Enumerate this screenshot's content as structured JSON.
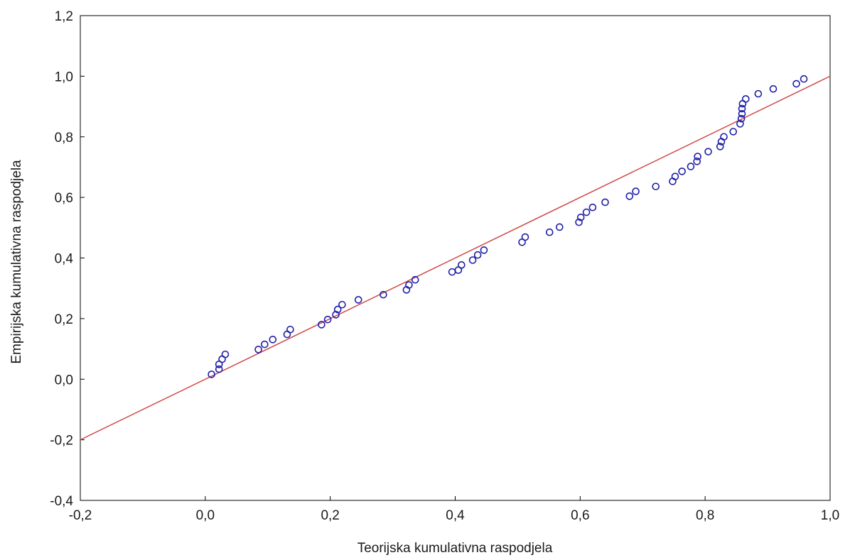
{
  "chart_data": {
    "type": "scatter",
    "title": "",
    "xlabel": "Teorijska kumulativna raspodjela",
    "ylabel": "Empirijska kumulativna raspodjela",
    "xlim": [
      -0.2,
      1.0
    ],
    "ylim": [
      -0.4,
      1.2
    ],
    "x_ticks": [
      "-0,2",
      "0,0",
      "0,2",
      "0,4",
      "0,6",
      "0,8",
      "1,0"
    ],
    "x_tick_values": [
      -0.2,
      0.0,
      0.2,
      0.4,
      0.6,
      0.8,
      1.0
    ],
    "y_ticks": [
      "-0,4",
      "-0,2",
      "0,0",
      "0,2",
      "0,4",
      "0,6",
      "0,8",
      "1,0",
      "1,2"
    ],
    "y_tick_values": [
      -0.4,
      -0.2,
      0.0,
      0.2,
      0.4,
      0.6,
      0.8,
      1.0,
      1.2
    ],
    "grid": false,
    "legend": "none",
    "colors": {
      "points": "#1f1fa8",
      "reference_line": "#d04848",
      "frame": "#000000"
    },
    "reference_line": {
      "x": [
        -0.2,
        1.0
      ],
      "y": [
        -0.2,
        1.0
      ]
    },
    "points": [
      [
        0.01,
        0.016
      ],
      [
        0.022,
        0.033
      ],
      [
        0.022,
        0.049
      ],
      [
        0.027,
        0.066
      ],
      [
        0.032,
        0.082
      ],
      [
        0.085,
        0.098
      ],
      [
        0.095,
        0.115
      ],
      [
        0.108,
        0.131
      ],
      [
        0.131,
        0.148
      ],
      [
        0.136,
        0.164
      ],
      [
        0.186,
        0.18
      ],
      [
        0.196,
        0.197
      ],
      [
        0.209,
        0.213
      ],
      [
        0.212,
        0.23
      ],
      [
        0.219,
        0.246
      ],
      [
        0.245,
        0.262
      ],
      [
        0.285,
        0.279
      ],
      [
        0.322,
        0.295
      ],
      [
        0.326,
        0.311
      ],
      [
        0.336,
        0.328
      ],
      [
        0.395,
        0.354
      ],
      [
        0.405,
        0.36
      ],
      [
        0.41,
        0.377
      ],
      [
        0.428,
        0.393
      ],
      [
        0.436,
        0.41
      ],
      [
        0.446,
        0.426
      ],
      [
        0.507,
        0.452
      ],
      [
        0.512,
        0.469
      ],
      [
        0.551,
        0.485
      ],
      [
        0.567,
        0.502
      ],
      [
        0.598,
        0.518
      ],
      [
        0.601,
        0.534
      ],
      [
        0.61,
        0.551
      ],
      [
        0.62,
        0.567
      ],
      [
        0.64,
        0.584
      ],
      [
        0.679,
        0.604
      ],
      [
        0.689,
        0.62
      ],
      [
        0.721,
        0.636
      ],
      [
        0.748,
        0.653
      ],
      [
        0.752,
        0.669
      ],
      [
        0.763,
        0.686
      ],
      [
        0.777,
        0.702
      ],
      [
        0.787,
        0.719
      ],
      [
        0.788,
        0.735
      ],
      [
        0.805,
        0.751
      ],
      [
        0.824,
        0.768
      ],
      [
        0.826,
        0.784
      ],
      [
        0.83,
        0.8
      ],
      [
        0.845,
        0.817
      ],
      [
        0.856,
        0.843
      ],
      [
        0.858,
        0.86
      ],
      [
        0.859,
        0.876
      ],
      [
        0.859,
        0.893
      ],
      [
        0.86,
        0.909
      ],
      [
        0.865,
        0.925
      ],
      [
        0.885,
        0.942
      ],
      [
        0.909,
        0.958
      ],
      [
        0.946,
        0.975
      ],
      [
        0.958,
        0.991
      ]
    ]
  }
}
